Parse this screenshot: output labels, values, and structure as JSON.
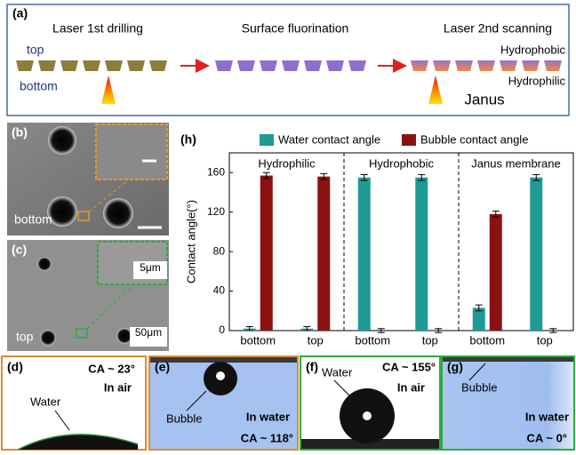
{
  "panels": {
    "a": {
      "label": "(a)",
      "steps": [
        "Laser 1st drilling",
        "Surface fluorination",
        "Laser 2nd scanning"
      ],
      "top": "top",
      "bottom": "bottom",
      "hydrophobic": "Hydrophobic",
      "hydrophilic": "Hydrophilic",
      "janus": "Janus"
    },
    "b": {
      "label": "(b)",
      "side": "bottom"
    },
    "c": {
      "label": "(c)",
      "scale_small": "5μm",
      "scale_large": "50μm",
      "side": "top"
    },
    "d": {
      "label": "(d)",
      "ca": "CA ~ 23°",
      "medium": "In air",
      "drop": "Water"
    },
    "e": {
      "label": "(e)",
      "drop": "Bubble",
      "medium": "In water",
      "ca": "CA ~ 118°"
    },
    "f": {
      "label": "(f)",
      "drop": "Water",
      "ca": "CA ~ 155°",
      "medium": "In air"
    },
    "g": {
      "label": "(g)",
      "drop": "Bubble",
      "medium": "In water",
      "ca": "CA ~ 0°"
    },
    "h": {
      "label": "(h)"
    }
  },
  "chart_data": {
    "type": "bar",
    "ylabel": "Contact angle(°)",
    "groups": [
      "Hydrophilic",
      "Hydrophobic",
      "Janus membrane"
    ],
    "categories": [
      "bottom",
      "top",
      "bottom",
      "top",
      "bottom",
      "top"
    ],
    "series": [
      {
        "name": "Water contact angle",
        "color": "#1f9a95",
        "values": [
          2,
          2,
          155,
          155,
          23,
          155
        ],
        "errors": [
          2,
          2,
          3,
          3,
          3,
          3
        ]
      },
      {
        "name": "Bubble contact angle",
        "color": "#8c1212",
        "values": [
          157,
          156,
          0,
          0,
          118,
          0
        ],
        "errors": [
          3,
          3,
          2,
          2,
          3,
          2
        ]
      }
    ],
    "ylim": [
      0,
      180
    ],
    "yticks": [
      0,
      40,
      80,
      120,
      160
    ]
  }
}
